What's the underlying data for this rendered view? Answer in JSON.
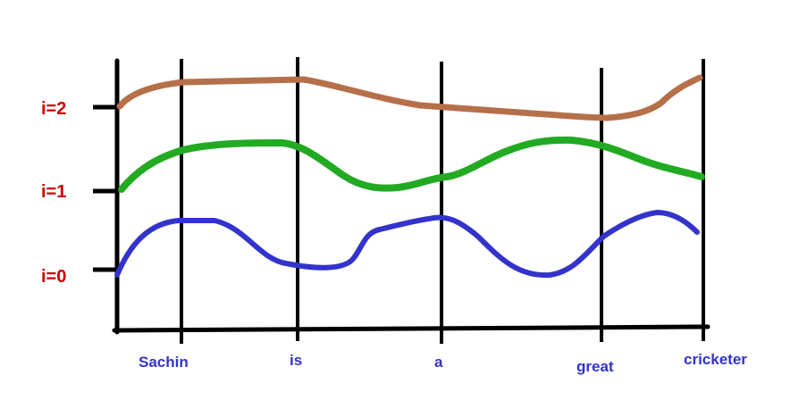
{
  "diagram": {
    "levels": [
      {
        "label": "i=0",
        "color": "#cc0000"
      },
      {
        "label": "i=1",
        "color": "#cc0000"
      },
      {
        "label": "i=2",
        "color": "#cc0000"
      }
    ],
    "words": [
      {
        "text": "Sachin",
        "color": "#3333cc"
      },
      {
        "text": "is",
        "color": "#3333cc"
      },
      {
        "text": "a",
        "color": "#3333cc"
      },
      {
        "text": "great",
        "color": "#3333cc"
      },
      {
        "text": "cricketer",
        "color": "#3333cc"
      }
    ],
    "curves": [
      {
        "level": "i=0",
        "color": "#3333cc"
      },
      {
        "level": "i=1",
        "color": "#22aa22"
      },
      {
        "level": "i=2",
        "color": "#b5704a"
      }
    ],
    "axis_color": "#000000"
  }
}
